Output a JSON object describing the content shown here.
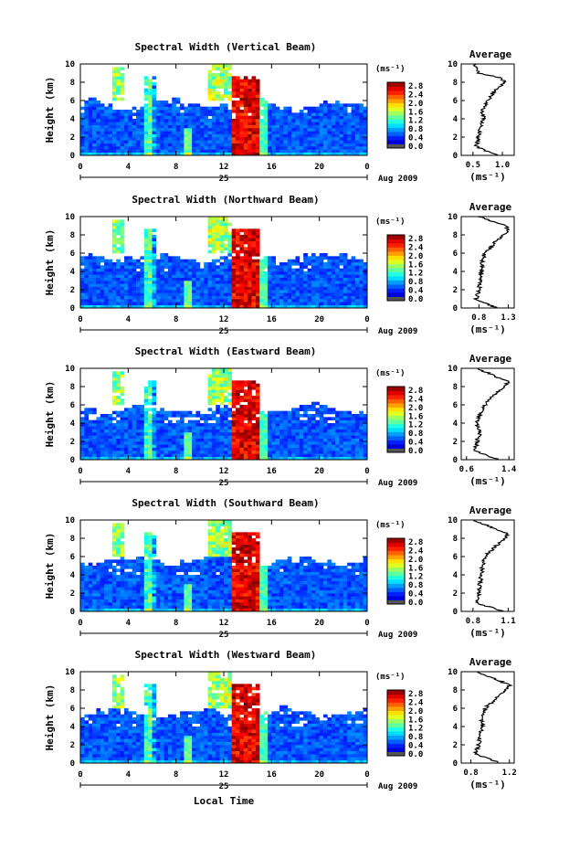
{
  "chart_data": [
    {
      "type": "heatmap",
      "title": "Spectral Width (Vertical Beam)",
      "ylabel": "Height (km)",
      "xlim": [
        0,
        24
      ],
      "ylim": [
        0,
        10
      ],
      "x_ticks": [
        "0",
        "4",
        "8",
        "12",
        "16",
        "20",
        "0"
      ],
      "y_ticks": [
        "0",
        "2",
        "4",
        "6",
        "8",
        "10"
      ],
      "date_day": "25",
      "date_label": "Aug 2009",
      "colorbar": {
        "unit": "(ms⁻¹)",
        "ticks": [
          "0.0",
          "0.4",
          "0.8",
          "1.2",
          "1.6",
          "2.0",
          "2.4",
          "2.8"
        ],
        "range": [
          0,
          3.0
        ]
      },
      "profile": {
        "title": "Average",
        "xlabel": "(ms⁻¹)",
        "xlim": [
          0.3,
          1.2
        ],
        "x_ticks": [
          "0.5",
          "1.0"
        ],
        "x_tick_values": [
          0.5,
          1.0
        ],
        "height": [
          0,
          1,
          2,
          3,
          4,
          5,
          6,
          7,
          8,
          8.5,
          9,
          10
        ],
        "value": [
          0.9,
          0.55,
          0.6,
          0.62,
          0.68,
          0.65,
          0.75,
          0.85,
          1.05,
          0.95,
          0.6,
          0.5
        ]
      }
    },
    {
      "type": "heatmap",
      "title": "Spectral Width (Northward Beam)",
      "ylabel": "Height (km)",
      "xlim": [
        0,
        24
      ],
      "ylim": [
        0,
        10
      ],
      "x_ticks": [
        "0",
        "4",
        "8",
        "12",
        "16",
        "20",
        "0"
      ],
      "y_ticks": [
        "0",
        "2",
        "4",
        "6",
        "8",
        "10"
      ],
      "date_day": "25",
      "date_label": "Aug 2009",
      "colorbar": {
        "unit": "(ms⁻¹)",
        "ticks": [
          "0.0",
          "0.4",
          "0.8",
          "1.2",
          "1.6",
          "2.0",
          "2.4",
          "2.8"
        ],
        "range": [
          0,
          3.0
        ]
      },
      "profile": {
        "title": "Average",
        "xlabel": "(ms⁻¹)",
        "xlim": [
          0.5,
          1.4
        ],
        "x_ticks": [
          "0.8",
          "1.3"
        ],
        "x_tick_values": [
          0.8,
          1.3
        ],
        "height": [
          0,
          1,
          2,
          3,
          4,
          5,
          6,
          7,
          8,
          8.5,
          9,
          10
        ],
        "value": [
          1.1,
          0.75,
          0.8,
          0.82,
          0.85,
          0.85,
          0.9,
          1.05,
          1.2,
          1.3,
          1.25,
          0.8
        ]
      }
    },
    {
      "type": "heatmap",
      "title": "Spectral Width (Eastward Beam)",
      "ylabel": "Height (km)",
      "xlim": [
        0,
        24
      ],
      "ylim": [
        0,
        10
      ],
      "x_ticks": [
        "0",
        "4",
        "8",
        "12",
        "16",
        "20",
        "0"
      ],
      "y_ticks": [
        "0",
        "2",
        "4",
        "6",
        "8",
        "10"
      ],
      "date_day": "25",
      "date_label": "Aug 2009",
      "colorbar": {
        "unit": "(ms⁻¹)",
        "ticks": [
          "0.0",
          "0.4",
          "0.8",
          "1.2",
          "1.6",
          "2.0",
          "2.4",
          "2.8"
        ],
        "range": [
          0,
          3.0
        ]
      },
      "profile": {
        "title": "Average",
        "xlabel": "(ms⁻¹)",
        "xlim": [
          0.5,
          1.5
        ],
        "x_ticks": [
          "0.6",
          "1.4"
        ],
        "x_tick_values": [
          0.6,
          1.4
        ],
        "height": [
          0,
          1,
          2,
          3,
          4,
          5,
          6,
          7,
          8,
          8.5,
          9,
          10
        ],
        "value": [
          1.2,
          0.75,
          0.8,
          0.85,
          0.8,
          0.85,
          0.95,
          1.1,
          1.3,
          1.4,
          1.2,
          0.8
        ]
      }
    },
    {
      "type": "heatmap",
      "title": "Spectral Width (Southward Beam)",
      "ylabel": "Height (km)",
      "xlim": [
        0,
        24
      ],
      "ylim": [
        0,
        10
      ],
      "x_ticks": [
        "0",
        "4",
        "8",
        "12",
        "16",
        "20",
        "0"
      ],
      "y_ticks": [
        "0",
        "2",
        "4",
        "6",
        "8",
        "10"
      ],
      "date_day": "25",
      "date_label": "Aug 2009",
      "colorbar": {
        "unit": "(ms⁻¹)",
        "ticks": [
          "0.0",
          "0.4",
          "0.8",
          "1.2",
          "1.6",
          "2.0",
          "2.4",
          "2.8"
        ],
        "range": [
          0,
          3.0
        ]
      },
      "profile": {
        "title": "Average",
        "xlabel": "(ms⁻¹)",
        "xlim": [
          0.7,
          1.15
        ],
        "x_ticks": [
          "0.8",
          "1.1"
        ],
        "x_tick_values": [
          0.8,
          1.1
        ],
        "height": [
          0,
          1,
          2,
          3,
          4,
          5,
          6,
          7,
          8,
          8.5,
          9,
          10
        ],
        "value": [
          1.05,
          0.82,
          0.85,
          0.86,
          0.87,
          0.88,
          0.9,
          0.98,
          1.08,
          1.1,
          1.0,
          0.8
        ]
      }
    },
    {
      "type": "heatmap",
      "title": "Spectral Width (Westward Beam)",
      "ylabel": "Height (km)",
      "xlabel": "Local Time",
      "xlim": [
        0,
        24
      ],
      "ylim": [
        0,
        10
      ],
      "x_ticks": [
        "0",
        "4",
        "8",
        "12",
        "16",
        "20",
        "0"
      ],
      "y_ticks": [
        "0",
        "2",
        "4",
        "6",
        "8",
        "10"
      ],
      "date_day": "25",
      "date_label": "Aug 2009",
      "colorbar": {
        "unit": "(ms⁻¹)",
        "ticks": [
          "0.0",
          "0.4",
          "0.8",
          "1.2",
          "1.6",
          "2.0",
          "2.4",
          "2.8"
        ],
        "range": [
          0,
          3.0
        ]
      },
      "profile": {
        "title": "Average",
        "xlabel": "(ms⁻¹)",
        "xlim": [
          0.7,
          1.25
        ],
        "x_ticks": [
          "0.8",
          "1.2"
        ],
        "x_tick_values": [
          0.8,
          1.2
        ],
        "height": [
          0,
          1,
          2,
          3,
          4,
          5,
          6,
          7,
          8,
          8.5,
          9,
          10
        ],
        "value": [
          1.1,
          0.85,
          0.88,
          0.9,
          0.92,
          0.9,
          0.95,
          1.05,
          1.15,
          1.2,
          1.1,
          0.85
        ]
      }
    }
  ]
}
